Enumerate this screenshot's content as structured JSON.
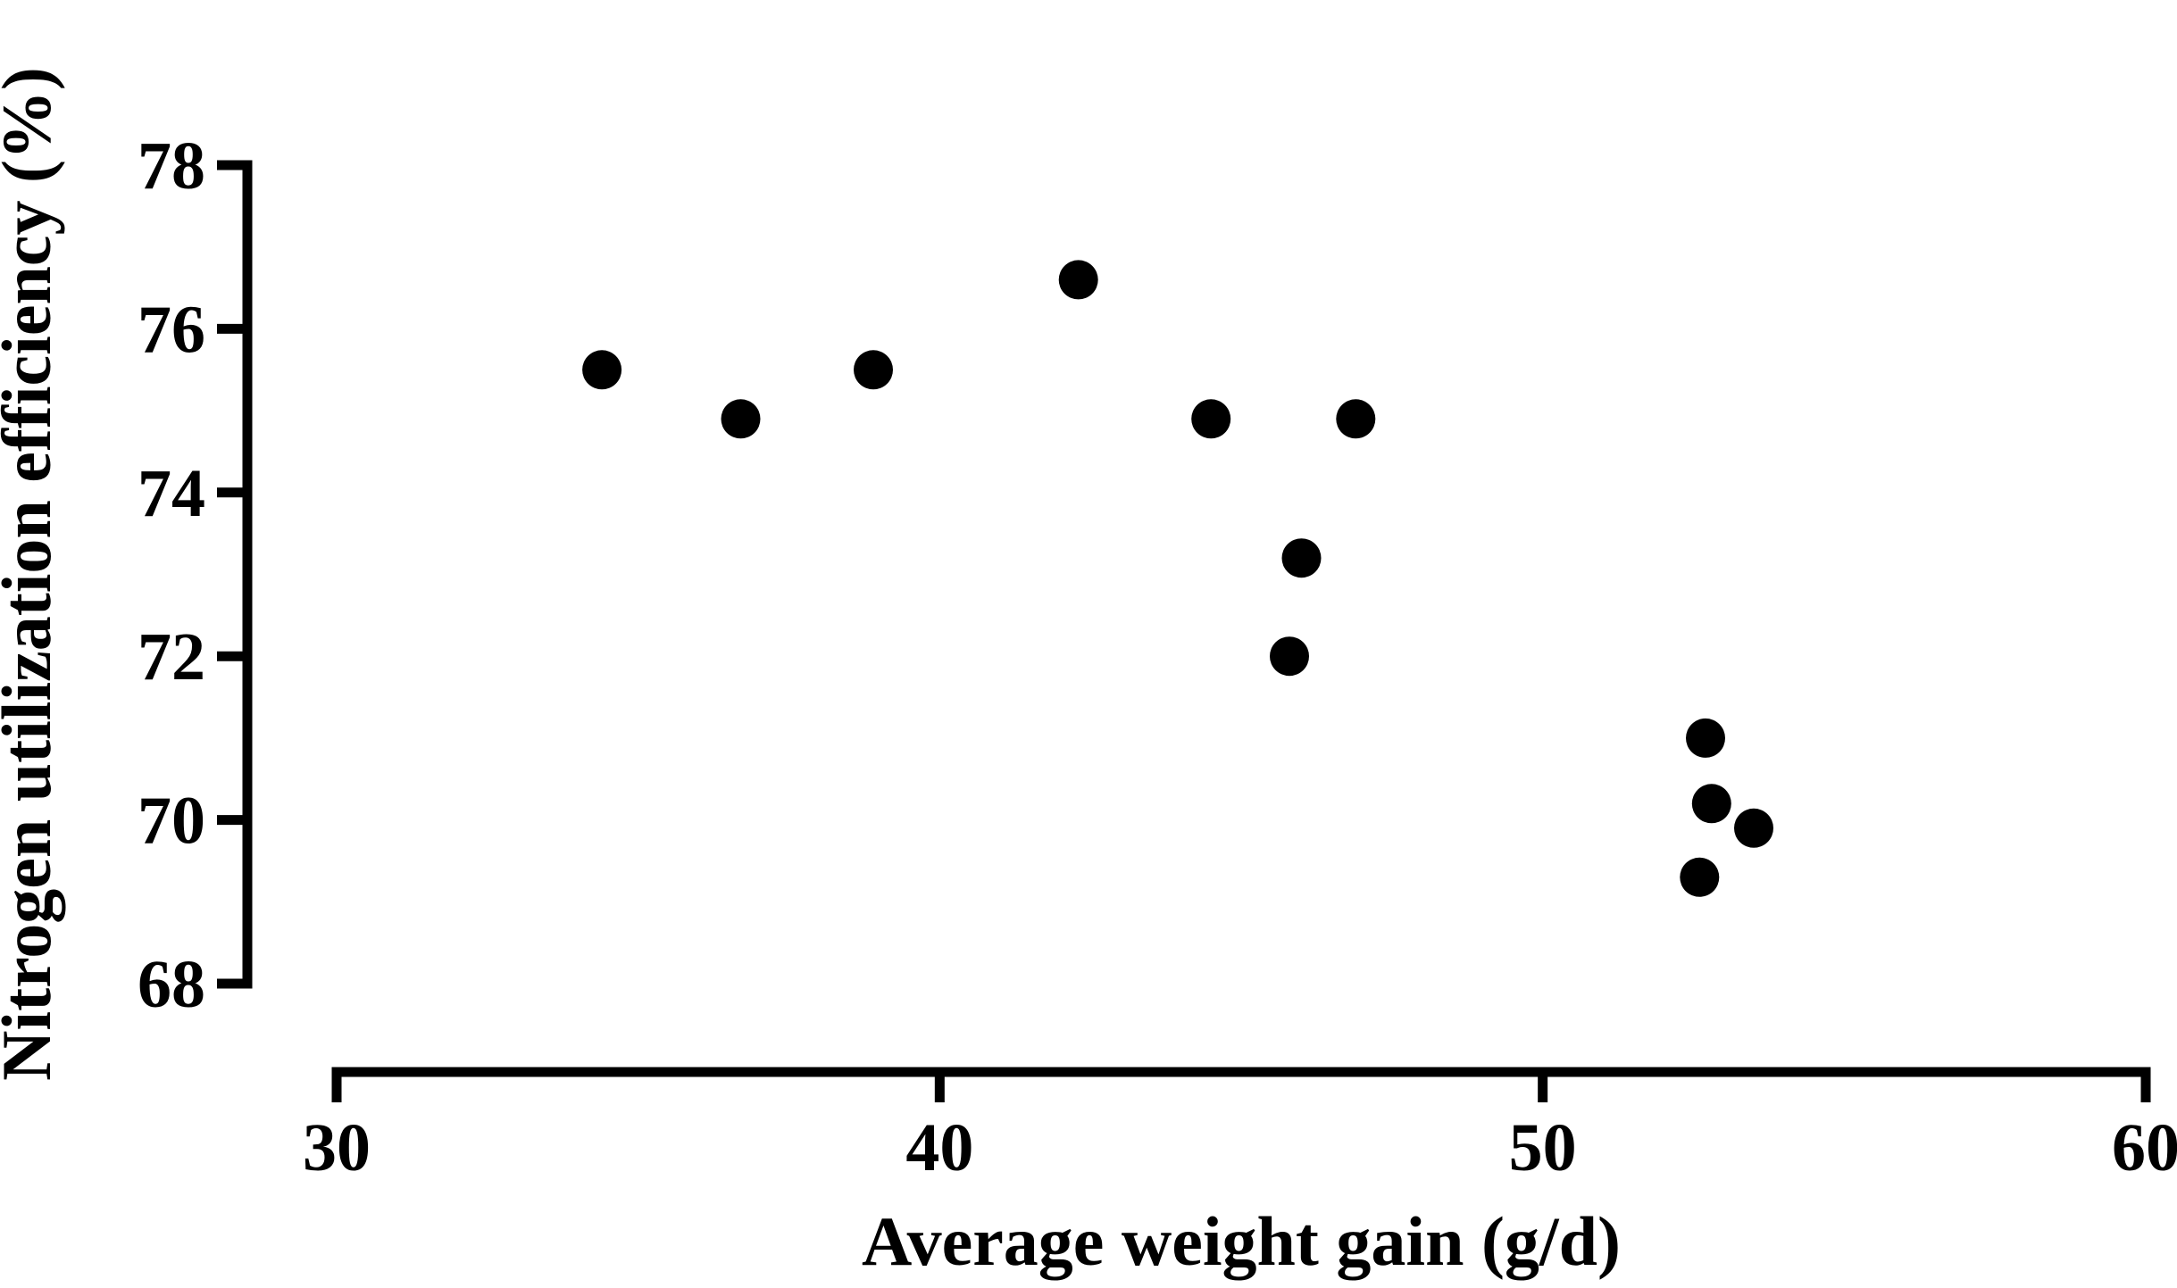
{
  "figure": {
    "background_color": "#ffffff",
    "foreground_color": "#000000"
  },
  "chart_data": {
    "type": "scatter",
    "title": "",
    "xlabel": "Average weight gain (g/d)",
    "ylabel": "Nitrogen utilization efficiency (%)",
    "xlim": [
      30,
      60
    ],
    "ylim": [
      68,
      78
    ],
    "x_ticks": [
      30,
      40,
      50,
      60
    ],
    "y_ticks": [
      68,
      70,
      72,
      74,
      76,
      78
    ],
    "grid": false,
    "legend": null,
    "marker": {
      "shape": "circle",
      "color": "#000000",
      "radius_px": 22
    },
    "points": [
      {
        "x": 34.4,
        "y": 75.5
      },
      {
        "x": 36.7,
        "y": 74.9
      },
      {
        "x": 38.9,
        "y": 75.5
      },
      {
        "x": 42.3,
        "y": 76.6
      },
      {
        "x": 44.5,
        "y": 74.9
      },
      {
        "x": 46.9,
        "y": 74.9
      },
      {
        "x": 46.0,
        "y": 73.2
      },
      {
        "x": 45.8,
        "y": 72.0
      },
      {
        "x": 52.7,
        "y": 71.0
      },
      {
        "x": 52.8,
        "y": 70.2
      },
      {
        "x": 53.5,
        "y": 69.9
      },
      {
        "x": 52.6,
        "y": 69.3
      }
    ]
  }
}
